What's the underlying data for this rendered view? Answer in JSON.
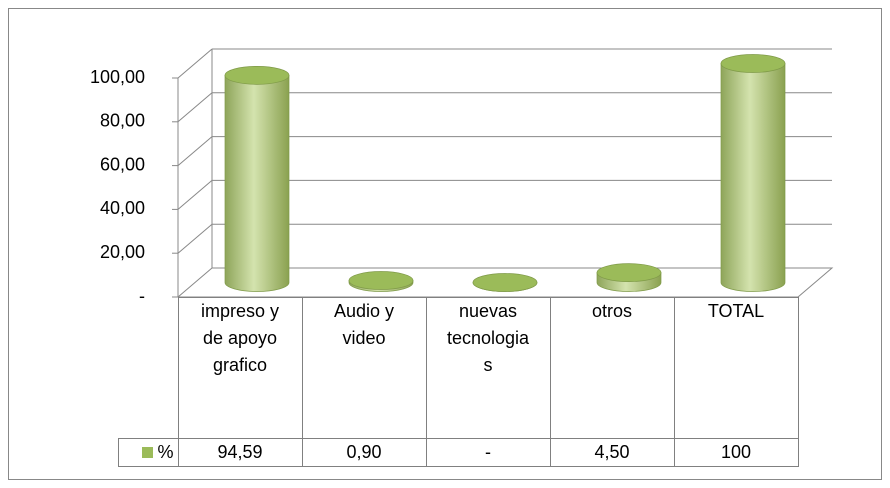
{
  "chart_data": {
    "type": "bar",
    "categories": [
      "impreso y de apoyo grafico",
      "Audio y video",
      "nuevas tecnologias",
      "otros",
      "TOTAL"
    ],
    "series": [
      {
        "name": "%",
        "color": "#9bbb59",
        "values": [
          94.59,
          0.9,
          0,
          4.5,
          100
        ],
        "value_labels": [
          "94,59",
          "0,90",
          "-",
          "4,50",
          "100"
        ]
      }
    ],
    "ylim": [
      0,
      100
    ],
    "yticks": [
      {
        "value": 0,
        "label": "-"
      },
      {
        "value": 20,
        "label": "20,00"
      },
      {
        "value": 40,
        "label": "40,00"
      },
      {
        "value": 60,
        "label": "60,00"
      },
      {
        "value": 80,
        "label": "80,00"
      },
      {
        "value": 100,
        "label": "100,00"
      }
    ],
    "grid": true
  }
}
